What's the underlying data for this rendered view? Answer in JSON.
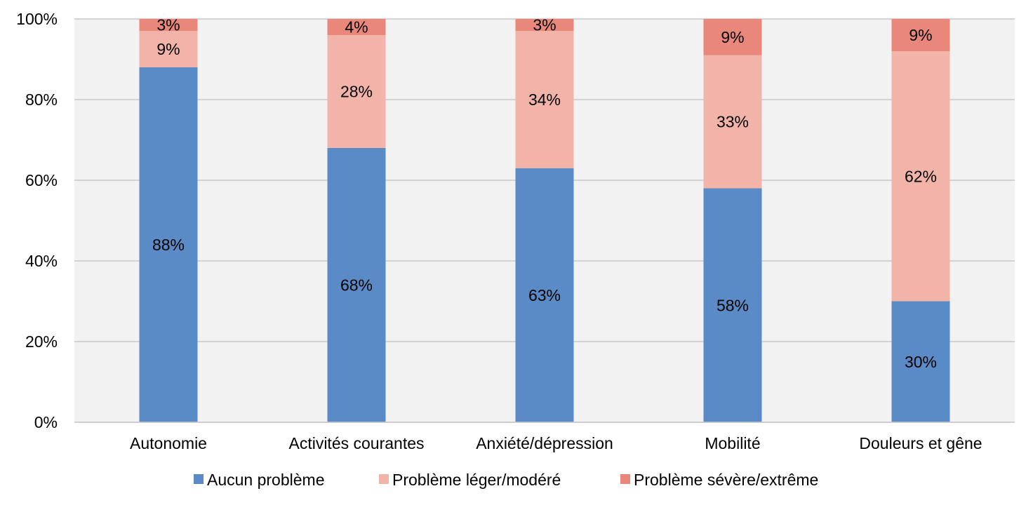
{
  "chart_data": {
    "type": "bar",
    "stacked": true,
    "categories": [
      "Autonomie",
      "Activités courantes",
      "Anxiété/dépression",
      "Mobilité",
      "Douleurs et gêne"
    ],
    "series": [
      {
        "name": "Aucun problème",
        "color": "#5b8bc6",
        "values": [
          88,
          68,
          63,
          58,
          30
        ],
        "labels": [
          "88%",
          "68%",
          "63%",
          "58%",
          "30%"
        ]
      },
      {
        "name": "Problème léger/modéré",
        "color": "#f2b4a8",
        "values": [
          9,
          28,
          34,
          33,
          62
        ],
        "labels": [
          "9%",
          "28%",
          "34%",
          "33%",
          "62%"
        ]
      },
      {
        "name": "Problème sévère/extrême",
        "color": "#e8877a",
        "values": [
          3,
          4,
          3,
          9,
          9
        ],
        "labels": [
          "3%",
          "4%",
          "3%",
          "9%",
          "9%"
        ]
      }
    ],
    "ylim": [
      0,
      100
    ],
    "yticks": [
      "0%",
      "20%",
      "40%",
      "60%",
      "80%",
      "100%"
    ],
    "grid": true,
    "plot_background": "#f2f2f2",
    "legend_position": "bottom"
  }
}
